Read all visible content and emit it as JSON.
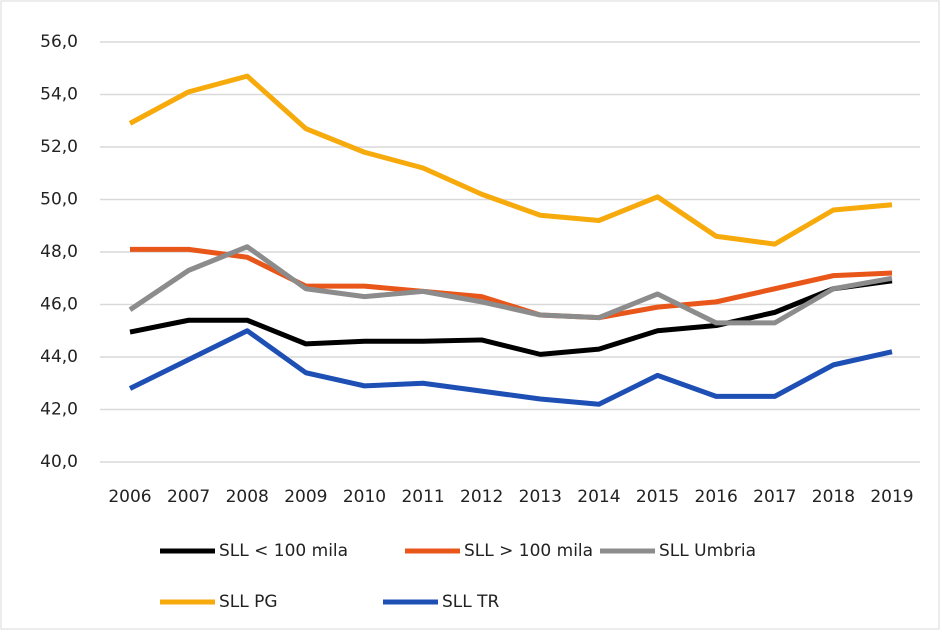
{
  "chart_data": {
    "type": "line",
    "categories": [
      "2006",
      "2007",
      "2008",
      "2009",
      "2010",
      "2011",
      "2012",
      "2013",
      "2014",
      "2015",
      "2016",
      "2017",
      "2018",
      "2019"
    ],
    "series": [
      {
        "name": "SLL < 100 mila",
        "color": "#000000",
        "values": [
          44.95,
          45.4,
          45.4,
          44.5,
          44.6,
          44.6,
          44.65,
          44.1,
          44.3,
          45.0,
          45.2,
          45.7,
          46.6,
          46.9
        ]
      },
      {
        "name": "SLL > 100 mila",
        "color": "#e8561a",
        "values": [
          48.1,
          48.1,
          47.8,
          46.7,
          46.7,
          46.5,
          46.3,
          45.6,
          45.5,
          45.9,
          46.1,
          46.6,
          47.1,
          47.2
        ]
      },
      {
        "name": "SLL Umbria",
        "color": "#8c8c8c",
        "values": [
          45.8,
          47.3,
          48.2,
          46.6,
          46.3,
          46.5,
          46.1,
          45.6,
          45.5,
          46.4,
          45.3,
          45.3,
          46.6,
          47.0
        ]
      },
      {
        "name": "SLL PG",
        "color": "#f6aa0c",
        "values": [
          52.9,
          54.1,
          54.7,
          52.7,
          51.8,
          51.2,
          50.2,
          49.4,
          49.2,
          50.1,
          48.6,
          48.3,
          49.6,
          49.8
        ]
      },
      {
        "name": "SLL TR",
        "color": "#1e4fb4",
        "values": [
          42.8,
          43.9,
          45.0,
          43.4,
          42.9,
          43.0,
          42.7,
          42.4,
          42.2,
          43.3,
          42.5,
          42.5,
          43.7,
          44.2
        ]
      }
    ],
    "ylim": [
      40,
      56
    ],
    "yticks": [
      {
        "value": 40,
        "label": "40,0"
      },
      {
        "value": 42,
        "label": "42,0"
      },
      {
        "value": 44,
        "label": "44,0"
      },
      {
        "value": 46,
        "label": "46,0"
      },
      {
        "value": 48,
        "label": "48,0"
      },
      {
        "value": 50,
        "label": "50,0"
      },
      {
        "value": 52,
        "label": "52,0"
      },
      {
        "value": 54,
        "label": "54,0"
      },
      {
        "value": 56,
        "label": "56,0"
      }
    ],
    "grid": true
  }
}
